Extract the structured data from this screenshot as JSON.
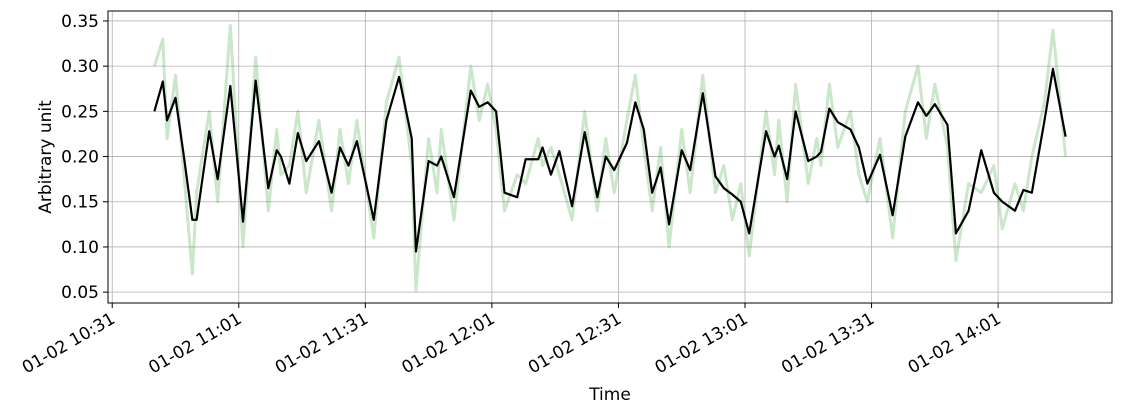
{
  "chart_data": {
    "type": "line",
    "xlabel": "Time",
    "ylabel": "Arbitrary unit",
    "x": [
      "01-02 10:41",
      "01-02 10:43",
      "01-02 10:44",
      "01-02 10:46",
      "01-02 10:48",
      "01-02 10:50",
      "01-02 10:51",
      "01-02 10:54",
      "01-02 10:56",
      "01-02 10:59",
      "01-02 11:02",
      "01-02 11:05",
      "01-02 11:08",
      "01-02 11:10",
      "01-02 11:11",
      "01-02 11:13",
      "01-02 11:15",
      "01-02 11:17",
      "01-02 11:20",
      "01-02 11:23",
      "01-02 11:25",
      "01-02 11:27",
      "01-02 11:29",
      "01-02 11:33",
      "01-02 11:36",
      "01-02 11:39",
      "01-02 11:42",
      "01-02 11:43",
      "01-02 11:46",
      "01-02 11:48",
      "01-02 11:49",
      "01-02 11:52",
      "01-02 11:56",
      "01-02 11:58",
      "01-02 12:00",
      "01-02 12:02",
      "01-02 12:04",
      "01-02 12:07",
      "01-02 12:09",
      "01-02 12:12",
      "01-02 12:13",
      "01-02 12:15",
      "01-02 12:17",
      "01-02 12:20",
      "01-02 12:23",
      "01-02 12:26",
      "01-02 12:28",
      "01-02 12:30",
      "01-02 12:33",
      "01-02 12:35",
      "01-02 12:37",
      "01-02 12:39",
      "01-02 12:41",
      "01-02 12:43",
      "01-02 12:46",
      "01-02 12:48",
      "01-02 12:51",
      "01-02 12:54",
      "01-02 12:56",
      "01-02 12:58",
      "01-02 13:00",
      "01-02 13:02",
      "01-02 13:06",
      "01-02 13:08",
      "01-02 13:09",
      "01-02 13:11",
      "01-02 13:13",
      "01-02 13:16",
      "01-02 13:18",
      "01-02 13:19",
      "01-02 13:21",
      "01-02 13:23",
      "01-02 13:26",
      "01-02 13:28",
      "01-02 13:30",
      "01-02 13:33",
      "01-02 13:36",
      "01-02 13:39",
      "01-02 13:42",
      "01-02 13:44",
      "01-02 13:46",
      "01-02 13:49",
      "01-02 13:51",
      "01-02 13:54",
      "01-02 13:57",
      "01-02 14:00",
      "01-02 14:02",
      "01-02 14:05",
      "01-02 14:07",
      "01-02 14:09",
      "01-02 14:12",
      "01-02 14:14",
      "01-02 14:17"
    ],
    "series": [
      {
        "color": "#2ca02c",
        "values": [
          0.3,
          0.33,
          0.22,
          0.29,
          0.18,
          0.07,
          0.16,
          0.25,
          0.15,
          0.345,
          0.1,
          0.31,
          0.14,
          0.23,
          0.18,
          0.19,
          0.25,
          0.16,
          0.24,
          0.14,
          0.23,
          0.17,
          0.24,
          0.11,
          0.26,
          0.31,
          0.19,
          0.052,
          0.22,
          0.16,
          0.23,
          0.13,
          0.3,
          0.24,
          0.28,
          0.23,
          0.14,
          0.18,
          0.17,
          0.22,
          0.19,
          0.21,
          0.18,
          0.13,
          0.25,
          0.14,
          0.22,
          0.16,
          0.24,
          0.29,
          0.21,
          0.14,
          0.21,
          0.1,
          0.23,
          0.16,
          0.29,
          0.16,
          0.19,
          0.13,
          0.17,
          0.09,
          0.25,
          0.18,
          0.24,
          0.15,
          0.28,
          0.17,
          0.22,
          0.19,
          0.28,
          0.21,
          0.25,
          0.18,
          0.15,
          0.22,
          0.11,
          0.25,
          0.3,
          0.22,
          0.28,
          0.21,
          0.085,
          0.17,
          0.16,
          0.19,
          0.12,
          0.17,
          0.14,
          0.2,
          0.26,
          0.34,
          0.2
        ]
      },
      {
        "color": "#000000",
        "values": [
          0.25,
          0.283,
          0.24,
          0.265,
          0.2,
          0.13,
          0.13,
          0.228,
          0.175,
          0.278,
          0.128,
          0.284,
          0.165,
          0.207,
          0.2,
          0.17,
          0.226,
          0.195,
          0.217,
          0.16,
          0.21,
          0.19,
          0.217,
          0.13,
          0.24,
          0.288,
          0.22,
          0.095,
          0.195,
          0.19,
          0.2,
          0.155,
          0.273,
          0.255,
          0.26,
          0.25,
          0.16,
          0.155,
          0.197,
          0.197,
          0.21,
          0.18,
          0.206,
          0.145,
          0.227,
          0.155,
          0.2,
          0.185,
          0.215,
          0.26,
          0.23,
          0.16,
          0.188,
          0.125,
          0.207,
          0.185,
          0.27,
          0.178,
          0.165,
          0.158,
          0.15,
          0.115,
          0.228,
          0.2,
          0.212,
          0.175,
          0.25,
          0.195,
          0.2,
          0.205,
          0.253,
          0.238,
          0.23,
          0.21,
          0.17,
          0.202,
          0.135,
          0.222,
          0.26,
          0.245,
          0.258,
          0.235,
          0.115,
          0.14,
          0.207,
          0.16,
          0.15,
          0.14,
          0.163,
          0.16,
          0.24,
          0.297,
          0.222
        ]
      }
    ],
    "xlim": [
      "01-02 10:30",
      "01-02 14:28"
    ],
    "xticks": [
      "01-02 10:31",
      "01-02 11:01",
      "01-02 11:31",
      "01-02 12:01",
      "01-02 12:31",
      "01-02 13:01",
      "01-02 13:31",
      "01-02 14:01"
    ],
    "ylim": [
      0.038,
      0.361
    ],
    "yticks": [
      0.05,
      {
        "value": 0.1,
        "label": "0.10"
      },
      0.15,
      {
        "value": 0.2,
        "label": "0.20"
      },
      0.25,
      {
        "value": 0.3,
        "label": "0.30"
      },
      0.35
    ],
    "grid": true
  }
}
